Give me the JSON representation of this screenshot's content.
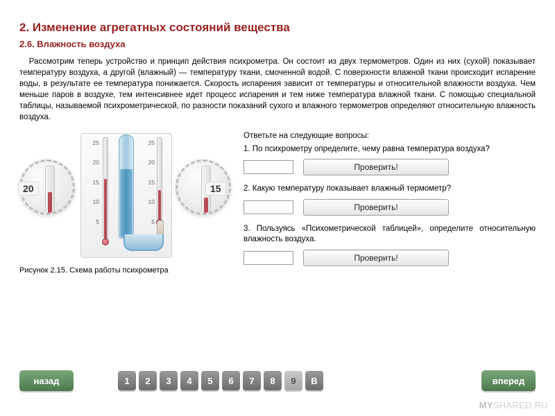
{
  "colors": {
    "title": "#9a1f1f",
    "subtitle": "#9a1f1f",
    "body_text": "#1a1a1a",
    "nav_btn_bg_top": "#7aa77a",
    "nav_btn_bg_bottom": "#4c7a4c",
    "page_btn_bg_top": "#9a9a9a",
    "page_btn_bg_bottom": "#6b6b6b",
    "thermo_liquid": "#b74b57",
    "water_liquid": "#4e92bb"
  },
  "header": {
    "chapter": "2. Изменение агрегатных состояний вещества",
    "section": "2.6. Влажность воздуха"
  },
  "paragraph": "Рассмотрим теперь устройство и принцип действия психрометра. Он состоит из двух термометров. Один из них (сухой) показывает температуру воздуха, а другой (влажный) — температуру ткани, смоченной водой. С поверхности влажной ткани происходит испарение воды, в результате ее температура понижается. Скорость испарения зависит от температуры и относительной влажности воздуха. Чем меньше паров в воздухе, тем интенсивнее идет процесс испарения и тем ниже температура влажной ткани. С помощью специальной таблицы, называемой психрометрической, по разности показаний сухого и влажного термометров определяют относительную влажность воздуха.",
  "figure": {
    "caption": "Рисунок 2.15. Схема работы психрометра",
    "scale_marks": [
      "25",
      "20",
      "15",
      "10",
      "5"
    ],
    "loupe_left_value": "20",
    "loupe_right_value": "15",
    "dry_reading_C": 20,
    "wet_reading_C": 15
  },
  "qa": {
    "prompt": "Ответьте на следующие вопросы:",
    "check_label": "Проверить!",
    "questions": [
      {
        "text": "1. По психрометру определите, чему равна температура воздуха?"
      },
      {
        "text": "2. Какую температуру показывает влажный термометр?"
      },
      {
        "text": "3. Пользуясь «Психометрической таблицей», определите относительную влажность воздуха."
      }
    ]
  },
  "nav": {
    "back": "назад",
    "forward": "вперед",
    "pages": [
      "1",
      "2",
      "3",
      "4",
      "5",
      "6",
      "7",
      "8",
      "9",
      "В"
    ],
    "current_index": 8
  },
  "watermark": {
    "left": "MY",
    "right": "SHARED"
  }
}
